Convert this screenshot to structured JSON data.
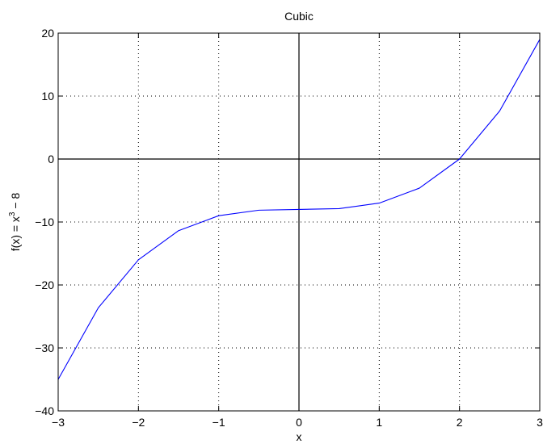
{
  "chart_data": {
    "type": "line",
    "title": "Cubic",
    "xlabel": "x",
    "ylabel_parts": {
      "prefix": "f(x) = x",
      "exponent": "3",
      "suffix": " − 8"
    },
    "xlim": [
      -3,
      3
    ],
    "ylim": [
      -40,
      20
    ],
    "xticks": [
      -3,
      -2,
      -1,
      0,
      1,
      2,
      3
    ],
    "yticks": [
      -40,
      -30,
      -20,
      -10,
      0,
      10,
      20
    ],
    "xtick_labels": [
      "−3",
      "−2",
      "−1",
      "0",
      "1",
      "2",
      "3"
    ],
    "ytick_labels": [
      "−40",
      "−30",
      "−20",
      "−10",
      "0",
      "10",
      "20"
    ],
    "grid": true,
    "reference_lines": {
      "y_zero": true,
      "x_zero": true
    },
    "series": [
      {
        "color": "#0000ff",
        "function": "x^3 - 8",
        "x": [
          -3,
          -2.5,
          -2,
          -1.5,
          -1,
          -0.5,
          0,
          0.5,
          1,
          1.5,
          2,
          2.5,
          3
        ],
        "y": [
          -35,
          -23.625,
          -16,
          -11.375,
          -9,
          -8.125,
          -8,
          -7.875,
          -7,
          -4.625,
          0,
          7.625,
          19
        ]
      }
    ]
  }
}
